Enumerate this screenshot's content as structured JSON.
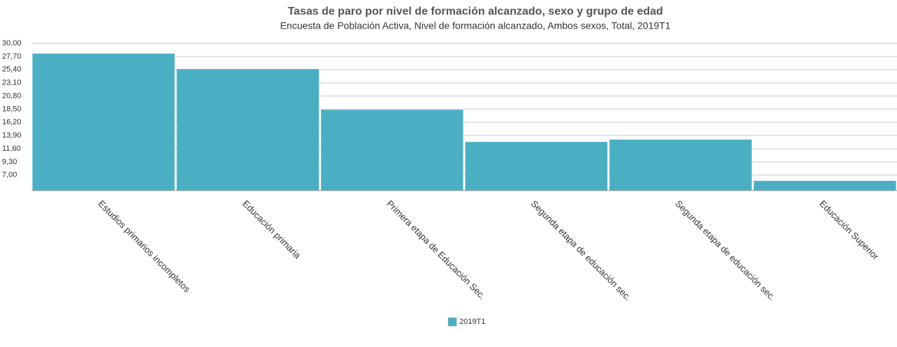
{
  "chart_data": {
    "type": "bar",
    "title": "Tasas de paro por nivel de formación alcanzado, sexo y grupo de edad",
    "subtitle": "Encuesta de Población Activa, Nivel de formación alcanzado, Ambos sexos, Total, 2019T1",
    "categories": [
      "Estudios primarios incompletos",
      "Educación primaria",
      "Primera etapa de Educación Sec.",
      "Segunda etapa de educación sec.",
      "Segunda etapa de educación sec.",
      "Educación Superior"
    ],
    "series": [
      {
        "name": "2019T1",
        "color": "#4bafc4",
        "values": [
          28.2,
          25.5,
          18.4,
          12.8,
          13.2,
          6.0
        ]
      }
    ],
    "ylim": [
      4.3,
      30
    ],
    "yticks": [
      {
        "value": 7,
        "label": "7,00"
      },
      {
        "value": 9.3,
        "label": "9,30"
      },
      {
        "value": 11.6,
        "label": "11,60"
      },
      {
        "value": 13.9,
        "label": "13,90"
      },
      {
        "value": 16.2,
        "label": "16,20"
      },
      {
        "value": 18.5,
        "label": "18,50"
      },
      {
        "value": 20.8,
        "label": "20,80"
      },
      {
        "value": 23.1,
        "label": "23,10"
      },
      {
        "value": 25.4,
        "label": "25,40"
      },
      {
        "value": 27.7,
        "label": "27,70"
      },
      {
        "value": 30,
        "label": "30,00"
      }
    ],
    "grid": true,
    "legend": "bottom"
  }
}
